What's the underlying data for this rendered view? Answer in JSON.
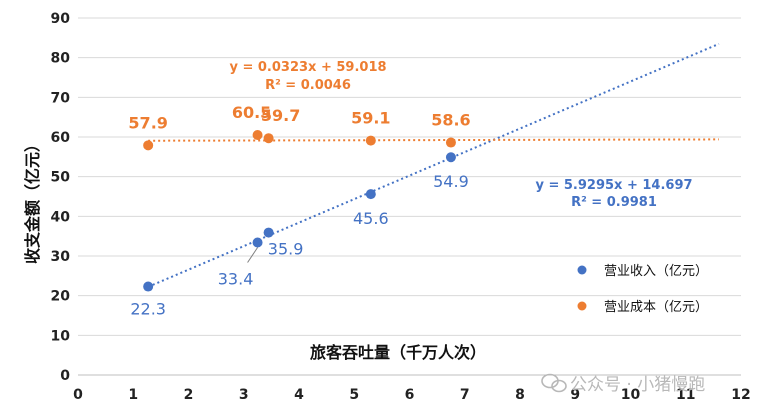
{
  "chart_data": {
    "type": "scatter",
    "title": "",
    "xlabel": "旅客吞吐量（千万人次）",
    "ylabel": "收支金额（亿元）",
    "xlim": [
      0,
      12
    ],
    "ylim": [
      0,
      90
    ],
    "xticks": [
      0,
      1,
      2,
      3,
      4,
      5,
      6,
      7,
      8,
      9,
      10,
      11,
      12
    ],
    "yticks": [
      0,
      10,
      20,
      30,
      40,
      50,
      60,
      70,
      80,
      90
    ],
    "grid": "horizontal",
    "legend_position": "bottom-right",
    "series": [
      {
        "name": "营业收入（亿元）",
        "color": "#4472C4",
        "x": [
          1.27,
          3.25,
          3.45,
          5.3,
          6.75
        ],
        "y": [
          22.3,
          33.4,
          35.9,
          45.6,
          54.9
        ],
        "labels": [
          "22.3",
          "33.4",
          "35.9",
          "45.6",
          "54.9"
        ],
        "trendline": {
          "slope": 5.9295,
          "intercept": 14.697,
          "equation": "y = 5.9295x + 14.697",
          "r2": "R² = 0.9981"
        }
      },
      {
        "name": "营业成本（亿元）",
        "color": "#ED7D31",
        "x": [
          1.27,
          3.25,
          3.45,
          5.3,
          6.75
        ],
        "y": [
          57.9,
          60.5,
          59.7,
          59.1,
          58.6
        ],
        "labels": [
          "57.9",
          "60.5",
          "59.7",
          "59.1",
          "58.6"
        ],
        "trendline": {
          "slope": 0.0323,
          "intercept": 59.018,
          "equation": "y = 0.0323x + 59.018",
          "r2": "R² = 0.0046"
        }
      }
    ]
  },
  "watermark": "公众号 · 小猪慢跑"
}
